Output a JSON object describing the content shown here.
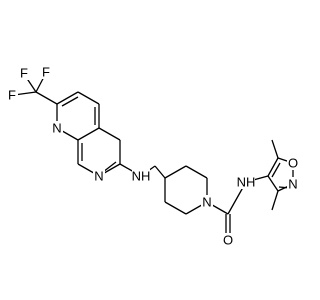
{
  "atoms": [
    {
      "label": "F"
    },
    {
      "label": "F"
    },
    {
      "label": "F"
    },
    {
      "label": "N"
    },
    {
      "label": "N"
    },
    {
      "label": "NH"
    },
    {
      "label": "N"
    },
    {
      "label": "O"
    },
    {
      "label": "NH"
    },
    {
      "label": "O"
    },
    {
      "label": "N"
    }
  ]
}
